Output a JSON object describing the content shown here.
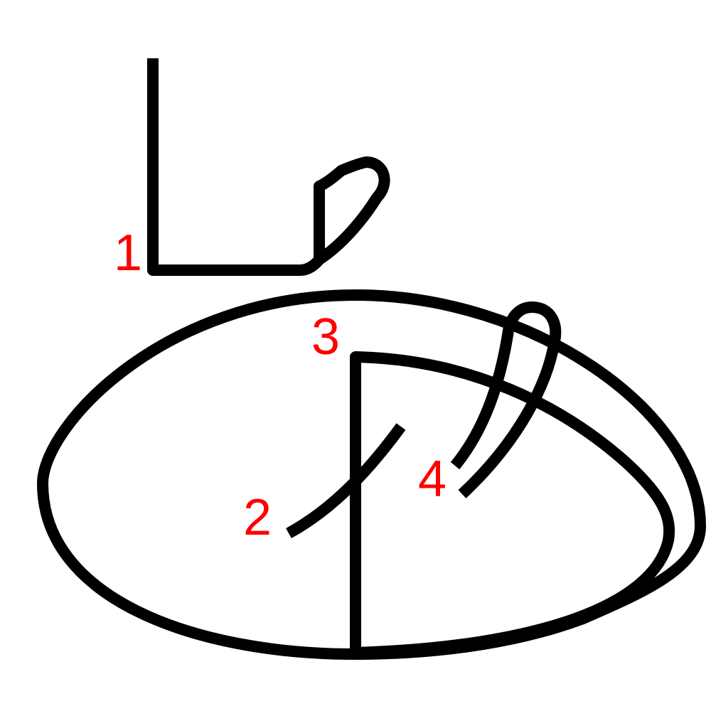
{
  "diagram": {
    "type": "stroke-order",
    "stroke_color": "#000000",
    "label_color": "#ff0000",
    "strokes": [
      {
        "id": "stroke-1",
        "label": "1"
      },
      {
        "id": "stroke-2",
        "label": "2"
      },
      {
        "id": "stroke-3",
        "label": "3"
      },
      {
        "id": "stroke-4",
        "label": "4"
      }
    ]
  }
}
